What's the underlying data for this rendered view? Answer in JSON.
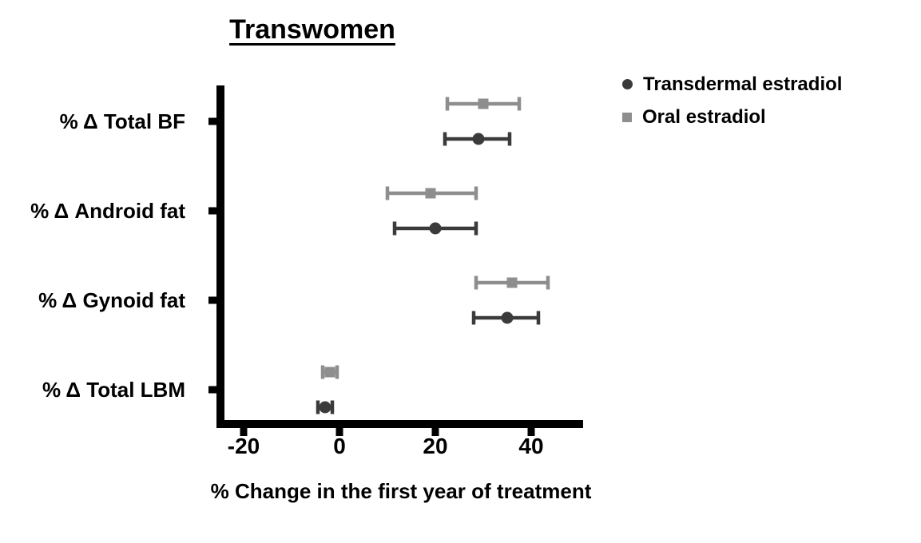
{
  "title": "Transwomen",
  "legend": {
    "position": "top-right",
    "items": [
      {
        "label": "Transdermal estradiol",
        "marker": "circle",
        "color": "#3b3b3b"
      },
      {
        "label": "Oral estradiol",
        "marker": "square",
        "color": "#8e8e8e"
      }
    ]
  },
  "colors": {
    "axis": "#000000",
    "text": "#000000",
    "transdermal": "#3b3b3b",
    "oral": "#8e8e8e",
    "background": "#ffffff"
  },
  "chart_data": {
    "type": "scatter",
    "subtype": "horizontal-point-estimates-with-error-bars",
    "title": "Transwomen",
    "xlabel": "% Change in the first year of treatment",
    "ylabel": "",
    "categories": [
      "% Δ Total BF",
      "% Δ Android fat",
      "% Δ Gynoid fat",
      "% Δ Total LBM"
    ],
    "x_ticks": [
      -20,
      0,
      20,
      40
    ],
    "xlim": [
      -25,
      51
    ],
    "grid": false,
    "legend_position": "top-right",
    "series": [
      {
        "name": "Transdermal estradiol",
        "marker": "circle",
        "color": "#3b3b3b",
        "values": [
          29,
          20,
          35,
          -3
        ],
        "ci_low": [
          22,
          11.5,
          28,
          -4.5
        ],
        "ci_high": [
          35.5,
          28.5,
          41.5,
          -1.5
        ]
      },
      {
        "name": "Oral estradiol",
        "marker": "square",
        "color": "#8e8e8e",
        "values": [
          30,
          19,
          36,
          -2
        ],
        "ci_low": [
          22.5,
          10,
          28.5,
          -3.5
        ],
        "ci_high": [
          37.5,
          28.5,
          43.5,
          -0.5
        ]
      }
    ]
  }
}
